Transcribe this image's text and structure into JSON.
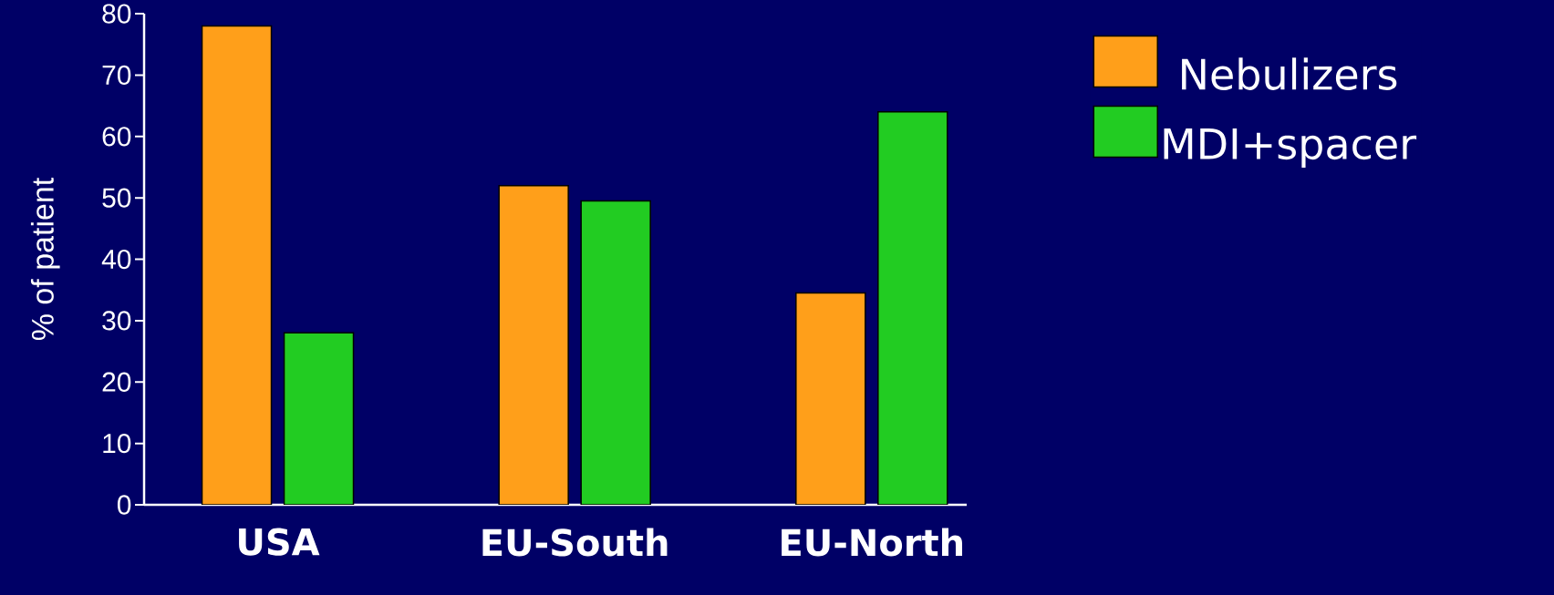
{
  "chart_data": {
    "type": "bar",
    "ylabel": "% of patient",
    "categories": [
      "USA",
      "EU-South",
      "EU-North"
    ],
    "series": [
      {
        "name": "Nebulizers",
        "color": "#ff9f1a",
        "values": [
          78,
          52,
          34.5
        ]
      },
      {
        "name": "MDI+spacer",
        "color": "#22cc22",
        "values": [
          28,
          49.5,
          64
        ]
      }
    ],
    "ylim": [
      0,
      80
    ],
    "yticks": [
      0,
      10,
      20,
      30,
      40,
      50,
      60,
      70,
      80
    ],
    "grid": false,
    "legend": "top right"
  }
}
